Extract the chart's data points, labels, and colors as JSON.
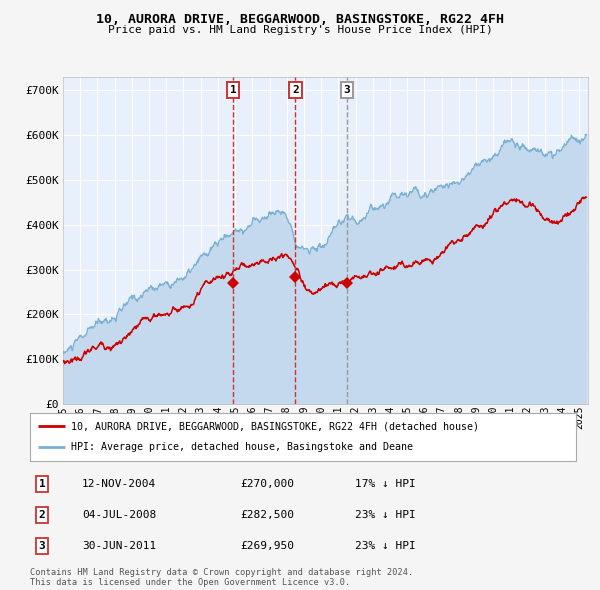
{
  "title": "10, AURORA DRIVE, BEGGARWOOD, BASINGSTOKE, RG22 4FH",
  "subtitle": "Price paid vs. HM Land Registry's House Price Index (HPI)",
  "fig_bg_color": "#f5f5f5",
  "plot_bg_color": "#e8f0fb",
  "grid_color": "#ffffff",
  "hpi_color": "#7ab0d4",
  "hpi_fill_color": "#c5d9ee",
  "price_color": "#cc0000",
  "marker_color": "#cc0000",
  "vline_color_red": "#cc3333",
  "vline_color_gray": "#999999",
  "yticks": [
    0,
    100000,
    200000,
    300000,
    400000,
    500000,
    600000,
    700000
  ],
  "ytick_labels": [
    "£0",
    "£100K",
    "£200K",
    "£300K",
    "£400K",
    "£500K",
    "£600K",
    "£700K"
  ],
  "ylim": [
    0,
    730000
  ],
  "sale_events": [
    {
      "label": "1",
      "date_idx": 2004.87,
      "price": 270000,
      "is_red": true
    },
    {
      "label": "2",
      "date_idx": 2008.5,
      "price": 282500,
      "is_red": true
    },
    {
      "label": "3",
      "date_idx": 2011.49,
      "price": 269950,
      "is_red": false
    }
  ],
  "legend_entries": [
    {
      "label": "10, AURORA DRIVE, BEGGARWOOD, BASINGSTOKE, RG22 4FH (detached house)",
      "color": "#cc0000"
    },
    {
      "label": "HPI: Average price, detached house, Basingstoke and Deane",
      "color": "#7ab0d4"
    }
  ],
  "table_rows": [
    {
      "num": "1",
      "date": "12-NOV-2004",
      "price": "£270,000",
      "pct": "17% ↓ HPI"
    },
    {
      "num": "2",
      "date": "04-JUL-2008",
      "price": "£282,500",
      "pct": "23% ↓ HPI"
    },
    {
      "num": "3",
      "date": "30-JUN-2011",
      "price": "£269,950",
      "pct": "23% ↓ HPI"
    }
  ],
  "footer": "Contains HM Land Registry data © Crown copyright and database right 2024.\nThis data is licensed under the Open Government Licence v3.0.",
  "xstart": 1995.0,
  "xend": 2025.5,
  "xtick_years": [
    1995,
    1996,
    1997,
    1998,
    1999,
    2000,
    2001,
    2002,
    2003,
    2004,
    2005,
    2006,
    2007,
    2008,
    2009,
    2010,
    2011,
    2012,
    2013,
    2014,
    2015,
    2016,
    2017,
    2018,
    2019,
    2020,
    2021,
    2022,
    2023,
    2024,
    2025
  ]
}
